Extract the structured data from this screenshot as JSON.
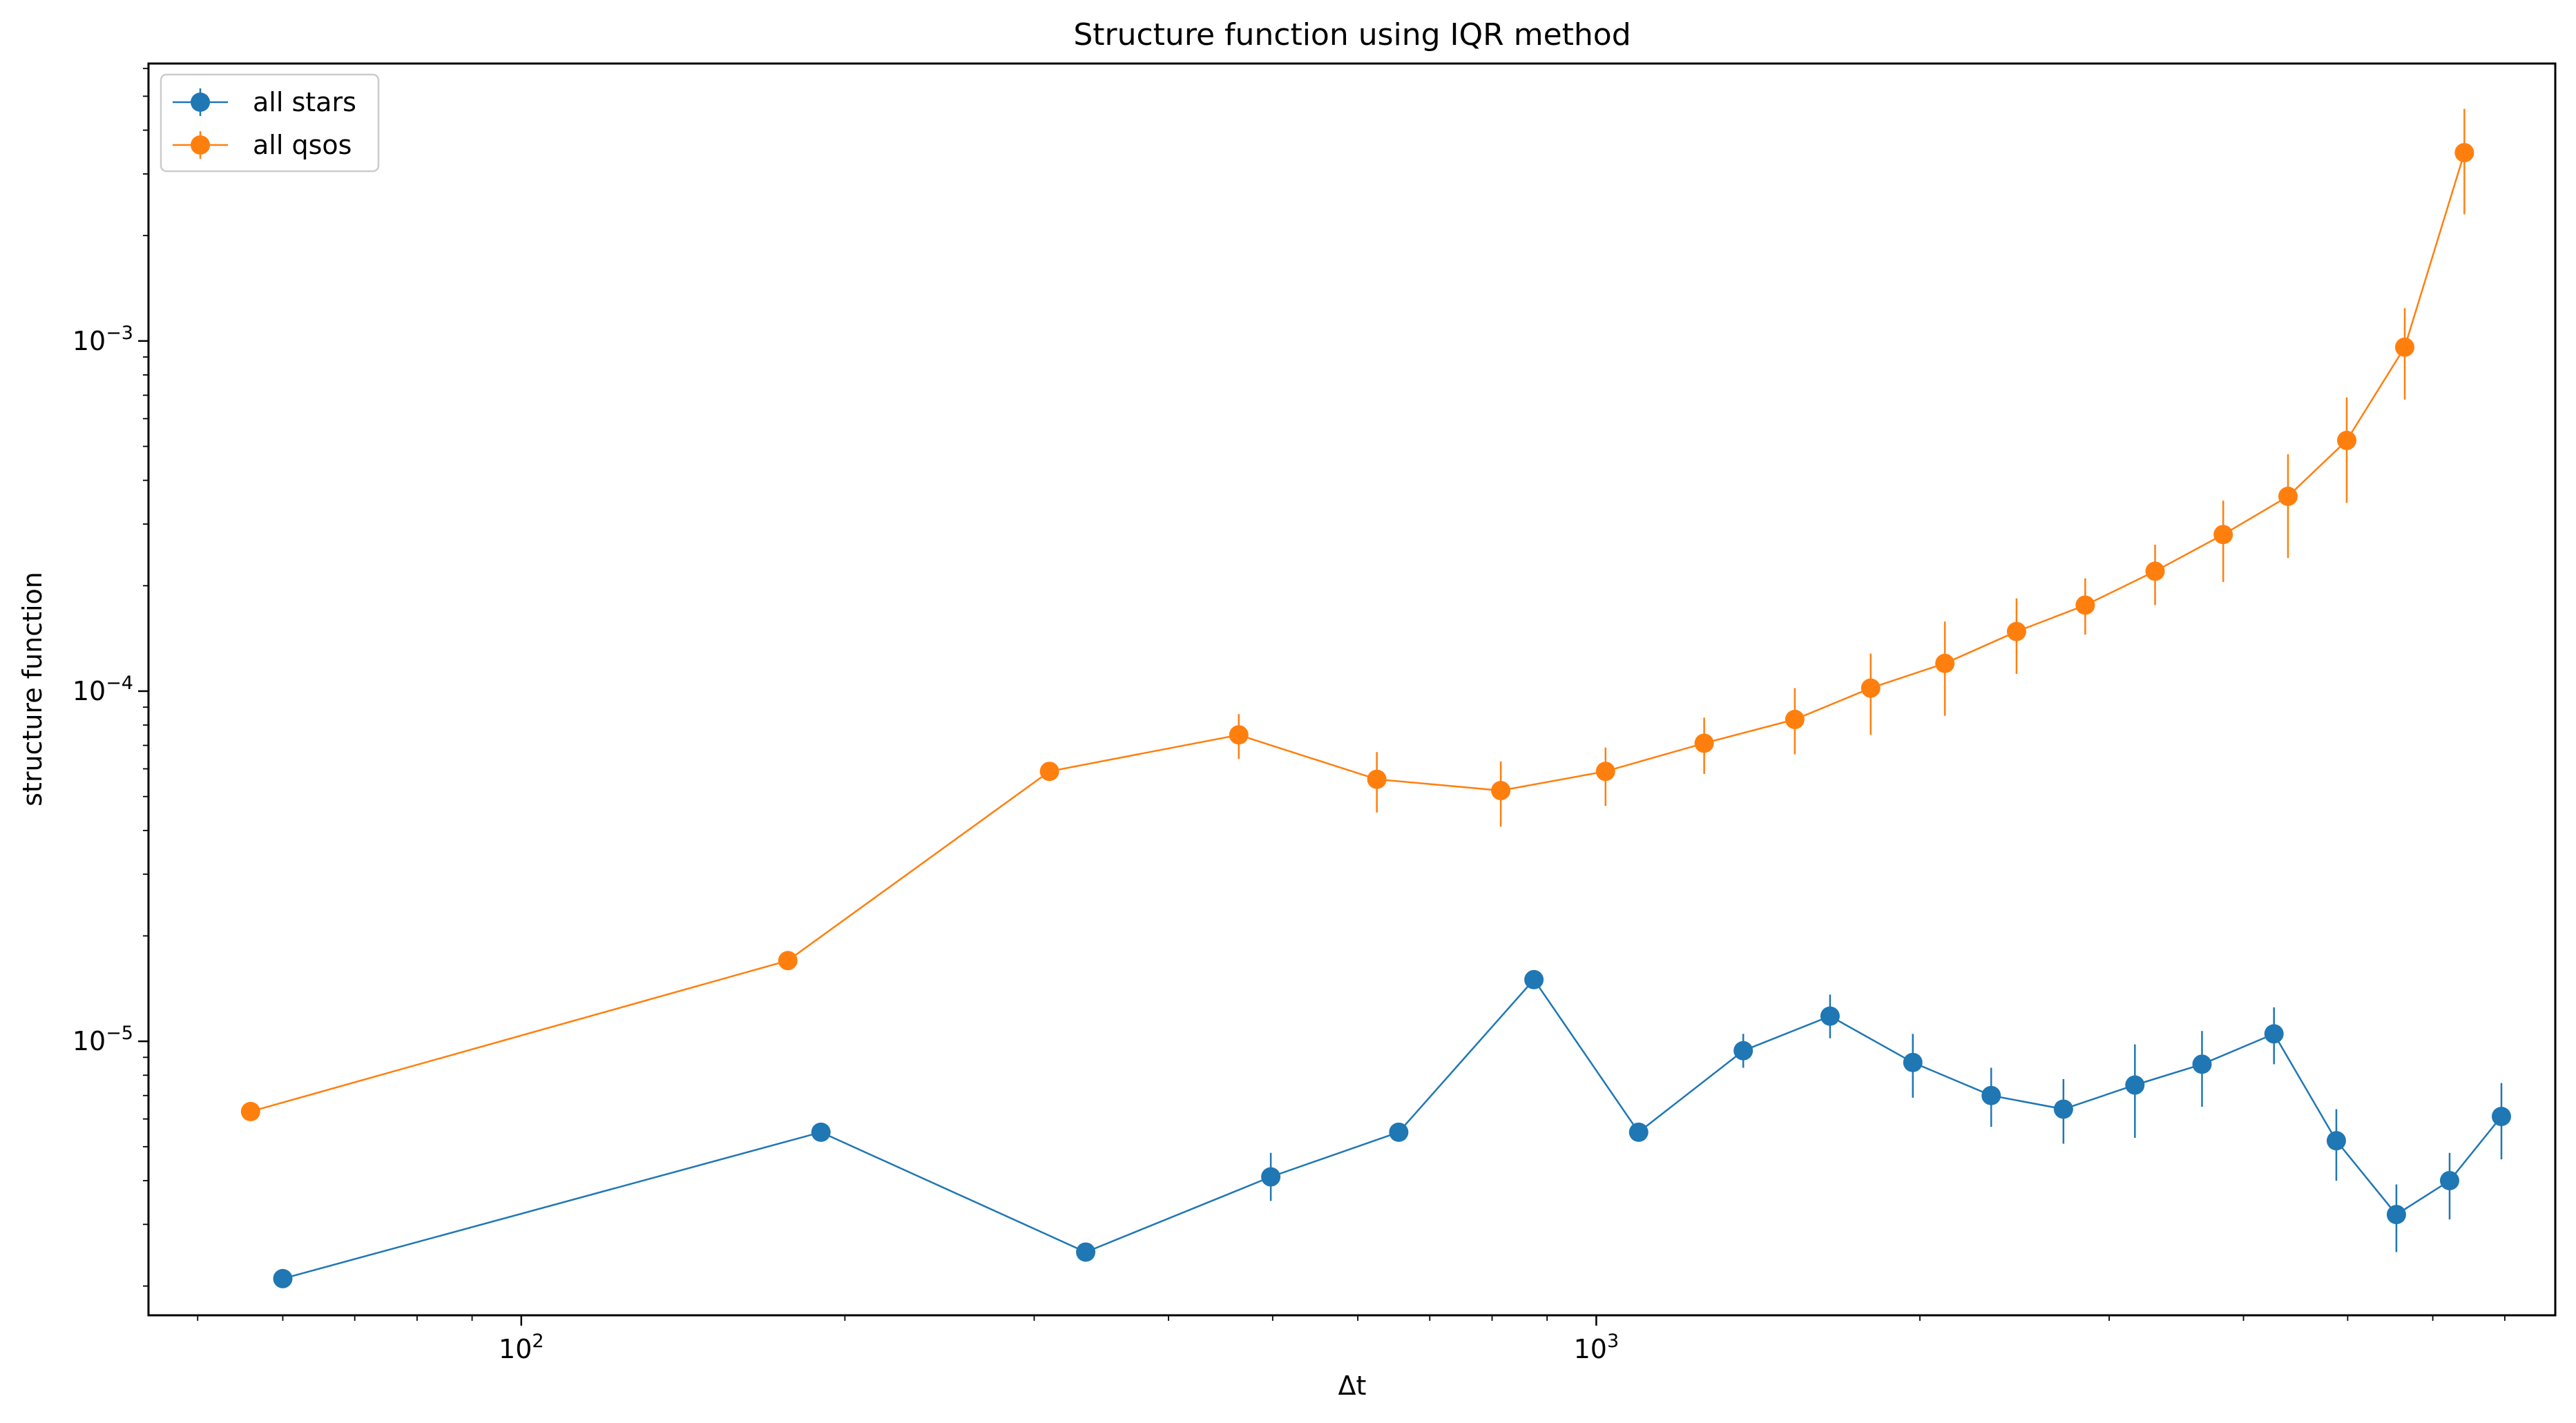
{
  "chart_data": {
    "type": "line",
    "title": "Structure function using IQR method",
    "xlabel": "Δt",
    "ylabel": "structure function",
    "xscale": "log",
    "yscale": "log",
    "xlim": [
      45,
      7800
    ],
    "ylim": [
      1.65e-06,
      0.0062
    ],
    "grid": false,
    "legend_position": "top-left",
    "x_major_ticks": [
      {
        "value": 100,
        "base": "10",
        "exp": "2"
      },
      {
        "value": 1000,
        "base": "10",
        "exp": "3"
      }
    ],
    "y_major_ticks": [
      {
        "value": 1e-05,
        "base": "10",
        "exp": "−5"
      },
      {
        "value": 0.0001,
        "base": "10",
        "exp": "−4"
      },
      {
        "value": 0.001,
        "base": "10",
        "exp": "−3"
      }
    ],
    "series": [
      {
        "name": "all stars",
        "color": "#1f77b4",
        "x": [
          60,
          190,
          335,
          498,
          655,
          875,
          1095,
          1370,
          1650,
          1970,
          2330,
          2720,
          3170,
          3660,
          4270,
          4880,
          5550,
          6220,
          6950
        ],
        "y": [
          2.1e-06,
          5.5e-06,
          2.5e-06,
          4.1e-06,
          5.5e-06,
          1.5e-05,
          5.5e-06,
          9.4e-06,
          1.18e-05,
          8.7e-06,
          7e-06,
          6.4e-06,
          7.5e-06,
          8.6e-06,
          1.05e-05,
          5.2e-06,
          3.2e-06,
          4e-06,
          6.1e-06
        ],
        "err_low": [
          2e-06,
          5.3e-06,
          2.4e-06,
          3.5e-06,
          5.3e-06,
          1.48e-05,
          5.3e-06,
          8.4e-06,
          1.02e-05,
          6.9e-06,
          5.7e-06,
          5.1e-06,
          5.3e-06,
          6.5e-06,
          8.6e-06,
          4e-06,
          2.5e-06,
          3.1e-06,
          4.6e-06
        ],
        "err_high": [
          2.2e-06,
          5.7e-06,
          2.6e-06,
          4.8e-06,
          5.7e-06,
          1.52e-05,
          5.7e-06,
          1.05e-05,
          1.36e-05,
          1.05e-05,
          8.4e-06,
          7.8e-06,
          9.8e-06,
          1.07e-05,
          1.25e-05,
          6.4e-06,
          3.9e-06,
          4.8e-06,
          7.6e-06
        ]
      },
      {
        "name": "all qsos",
        "color": "#ff7f0e",
        "x": [
          56,
          177,
          310,
          465,
          625,
          815,
          1020,
          1260,
          1530,
          1800,
          2110,
          2460,
          2850,
          3310,
          3830,
          4400,
          4990,
          5650,
          6420
        ],
        "y": [
          6.3e-06,
          1.7e-05,
          5.9e-05,
          7.5e-05,
          5.6e-05,
          5.2e-05,
          5.9e-05,
          7.1e-05,
          8.3e-05,
          0.000102,
          0.00012,
          0.000148,
          0.000176,
          0.00022,
          0.00028,
          0.00036,
          0.00052,
          0.00096,
          0.00345
        ],
        "err_low": [
          6.2e-06,
          1.65e-05,
          5.8e-05,
          6.4e-05,
          4.5e-05,
          4.1e-05,
          4.7e-05,
          5.8e-05,
          6.6e-05,
          7.5e-05,
          8.5e-05,
          0.000112,
          0.000145,
          0.000176,
          0.000205,
          0.00024,
          0.000345,
          0.00068,
          0.0023
        ],
        "err_high": [
          6.4e-06,
          1.75e-05,
          6e-05,
          8.6e-05,
          6.7e-05,
          6.3e-05,
          6.9e-05,
          8.4e-05,
          0.000102,
          0.000128,
          0.000158,
          0.000184,
          0.00021,
          0.000262,
          0.00035,
          0.000475,
          0.00069,
          0.00124,
          0.0046
        ]
      }
    ]
  }
}
